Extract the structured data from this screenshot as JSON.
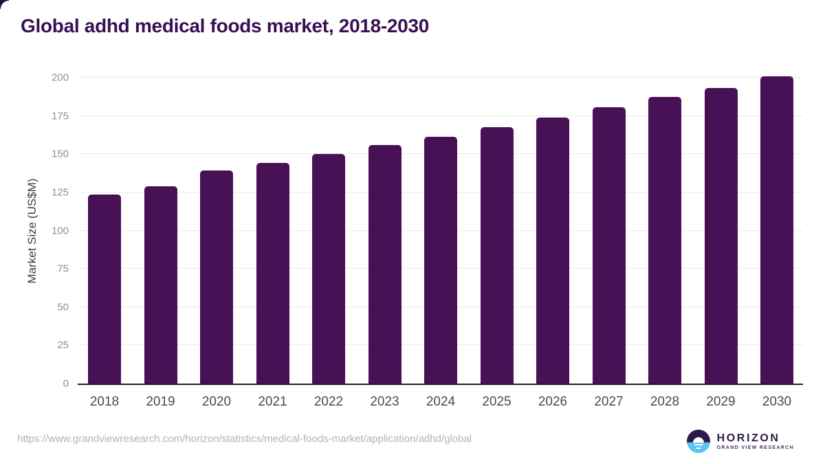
{
  "title": "Global adhd medical foods market, 2018-2030",
  "chart_data": {
    "type": "bar",
    "categories": [
      "2018",
      "2019",
      "2020",
      "2021",
      "2022",
      "2023",
      "2024",
      "2025",
      "2026",
      "2027",
      "2028",
      "2029",
      "2030"
    ],
    "values": [
      123.5,
      129,
      139.5,
      144.5,
      150,
      156,
      161.5,
      167.5,
      174,
      180.5,
      187.5,
      193.5,
      201
    ],
    "title": "Global adhd medical foods market, 2018-2030",
    "xlabel": "",
    "ylabel": "Market Size (US$M)",
    "ylim": [
      0,
      200
    ],
    "ytick_step": 25,
    "yticks": [
      0,
      25,
      50,
      75,
      100,
      125,
      150,
      175,
      200
    ],
    "grid": true,
    "legend": false,
    "bar_color": "#481155"
  },
  "footer": {
    "source_url": "https://www.grandviewresearch.com/horizon/statistics/medical-foods-market/application/adhd/global",
    "logo": {
      "wordmark": "HORIZON",
      "subtext": "GRAND VIEW RESEARCH"
    }
  },
  "colors": {
    "title": "#371052",
    "bar": "#481155",
    "gridline": "#e9e9e9",
    "axis_line": "#1f1f1f",
    "tick_label": "#8f8f8f",
    "x_label": "#4a4a4a",
    "axis_title": "#3e3e3e",
    "url_text": "#b2b2b2",
    "logo_purple": "#2d1a47",
    "logo_blue": "#5bc3ef"
  }
}
